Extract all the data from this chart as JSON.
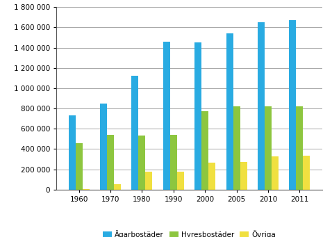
{
  "years": [
    "1960",
    "1970",
    "1980",
    "1990",
    "2000",
    "2005",
    "2010",
    "2011"
  ],
  "agarbostader": [
    730000,
    850000,
    1120000,
    1460000,
    1450000,
    1540000,
    1650000,
    1670000
  ],
  "hyresbostader": [
    460000,
    540000,
    530000,
    540000,
    770000,
    820000,
    820000,
    820000
  ],
  "ovriga": [
    5000,
    55000,
    175000,
    175000,
    265000,
    270000,
    325000,
    335000
  ],
  "bar_colors": [
    "#29ABE2",
    "#8DC63F",
    "#F0E040"
  ],
  "legend_labels": [
    "Ägarbostäder",
    "Hyresbostäder",
    "Övriga"
  ],
  "ylim": [
    0,
    1800000
  ],
  "ytick_values": [
    0,
    200000,
    400000,
    600000,
    800000,
    1000000,
    1200000,
    1400000,
    1600000,
    1800000
  ],
  "ytick_labels": [
    "0",
    "200 000",
    "400 000",
    "600 000",
    "800 000",
    "1 000 000",
    "1 200 000",
    "1 400 000",
    "1 600 000",
    "1 800 000"
  ],
  "background_color": "#ffffff",
  "grid_color": "#999999",
  "bar_width": 0.22,
  "figsize": [
    4.78,
    3.41
  ],
  "dpi": 100
}
